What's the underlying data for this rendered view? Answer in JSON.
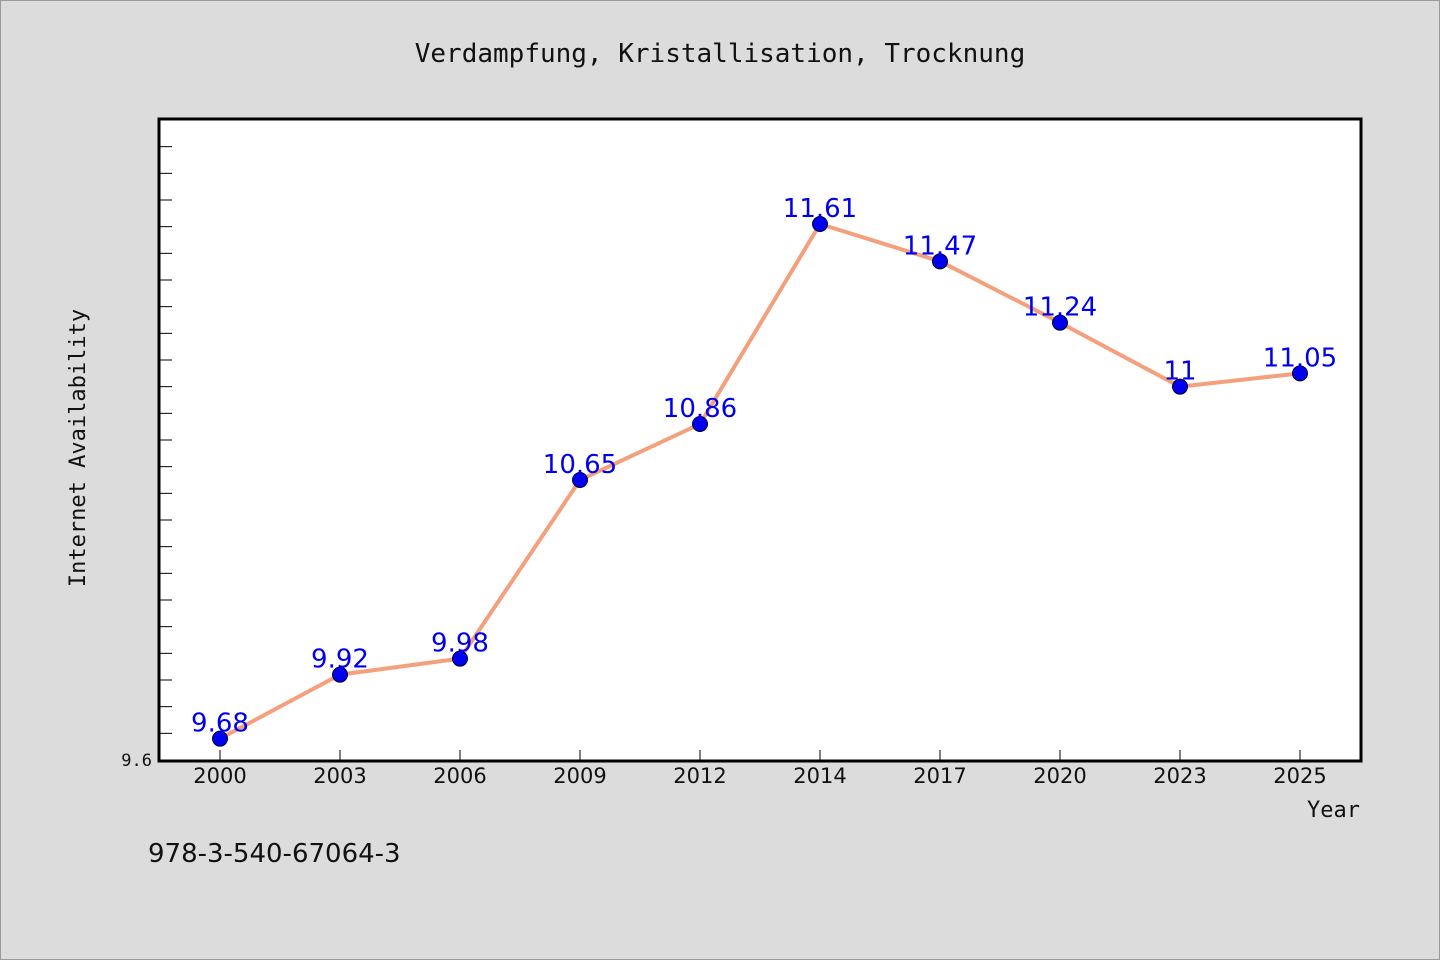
{
  "chart_data": {
    "type": "line",
    "title": "Verdampfung, Kristallisation, Trocknung",
    "xlabel": "Year",
    "ylabel": "Internet Availability",
    "categories": [
      "2000",
      "2003",
      "2006",
      "2009",
      "2012",
      "2014",
      "2017",
      "2020",
      "2023",
      "2025"
    ],
    "series": [
      {
        "values": [
          9.68,
          9.92,
          9.98,
          10.65,
          10.86,
          11.61,
          11.47,
          11.24,
          11,
          11.05
        ],
        "line_color": "#f4a07c",
        "marker_color": "#0000ee"
      }
    ],
    "value_labels": [
      "9.68",
      "9.92",
      "9.98",
      "10.65",
      "10.86",
      "11.61",
      "11.47",
      "11.24",
      "11",
      "11.05"
    ],
    "ylim": [
      9.6,
      12.0
    ],
    "yticks_labeled": [
      "9.6"
    ],
    "grid": false,
    "legend": "none"
  },
  "footer_text": "978-3-540-67064-3",
  "colors": {
    "background": "#dcdcdc",
    "plot_background": "#ffffff"
  }
}
